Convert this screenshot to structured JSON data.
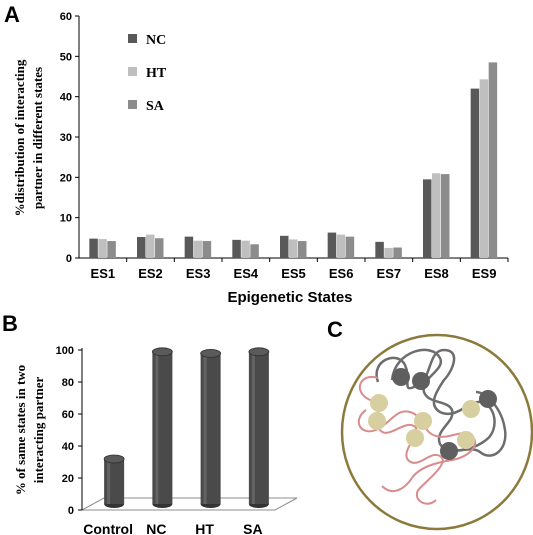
{
  "panels": {
    "a": "A",
    "b": "B",
    "c": "C"
  },
  "chart_data": [
    {
      "type": "bar",
      "title": "",
      "xlabel": "Epigenetic States",
      "ylabel_lines": [
        "%distribution  of interacting",
        "partner in different states"
      ],
      "categories": [
        "ES1",
        "ES2",
        "ES3",
        "ES4",
        "ES5",
        "ES6",
        "ES7",
        "ES8",
        "ES9"
      ],
      "ylim": [
        0,
        60
      ],
      "yticks": [
        "0",
        "10",
        "20",
        "30",
        "40",
        "50",
        "60"
      ],
      "legend_position": "top-left",
      "series": [
        {
          "name": "NC",
          "color": "#595959",
          "values": [
            4.8,
            5.2,
            5.3,
            4.5,
            5.5,
            6.3,
            4.0,
            19.5,
            42.0
          ]
        },
        {
          "name": "HT",
          "color": "#bfbfbf",
          "values": [
            4.7,
            5.8,
            4.3,
            4.3,
            4.6,
            5.8,
            2.5,
            21.0,
            44.3
          ]
        },
        {
          "name": "SA",
          "color": "#8c8c8c",
          "values": [
            4.2,
            4.9,
            4.2,
            3.4,
            4.2,
            5.3,
            2.6,
            20.8,
            48.5
          ]
        }
      ]
    },
    {
      "type": "bar",
      "title": "",
      "xlabel": "",
      "ylabel_lines": [
        "% of same states in two",
        "interacting partner"
      ],
      "categories": [
        "Control",
        "NC",
        "HT",
        "SA"
      ],
      "ylim": [
        0,
        100
      ],
      "yticks": [
        "0",
        "20",
        "40",
        "60",
        "80",
        "100"
      ],
      "style": "3d-cylinder",
      "color": "#4a4a4a",
      "values": [
        30,
        97,
        96,
        97
      ]
    }
  ],
  "diagram_c": {
    "circle_color": "#8b7a3c",
    "bead_colors": {
      "dark": "#5f5f5f",
      "light": "#d8cfa0"
    },
    "strand_colors": {
      "gray": "#6d6d6d",
      "pink": "#d98c8c"
    }
  }
}
